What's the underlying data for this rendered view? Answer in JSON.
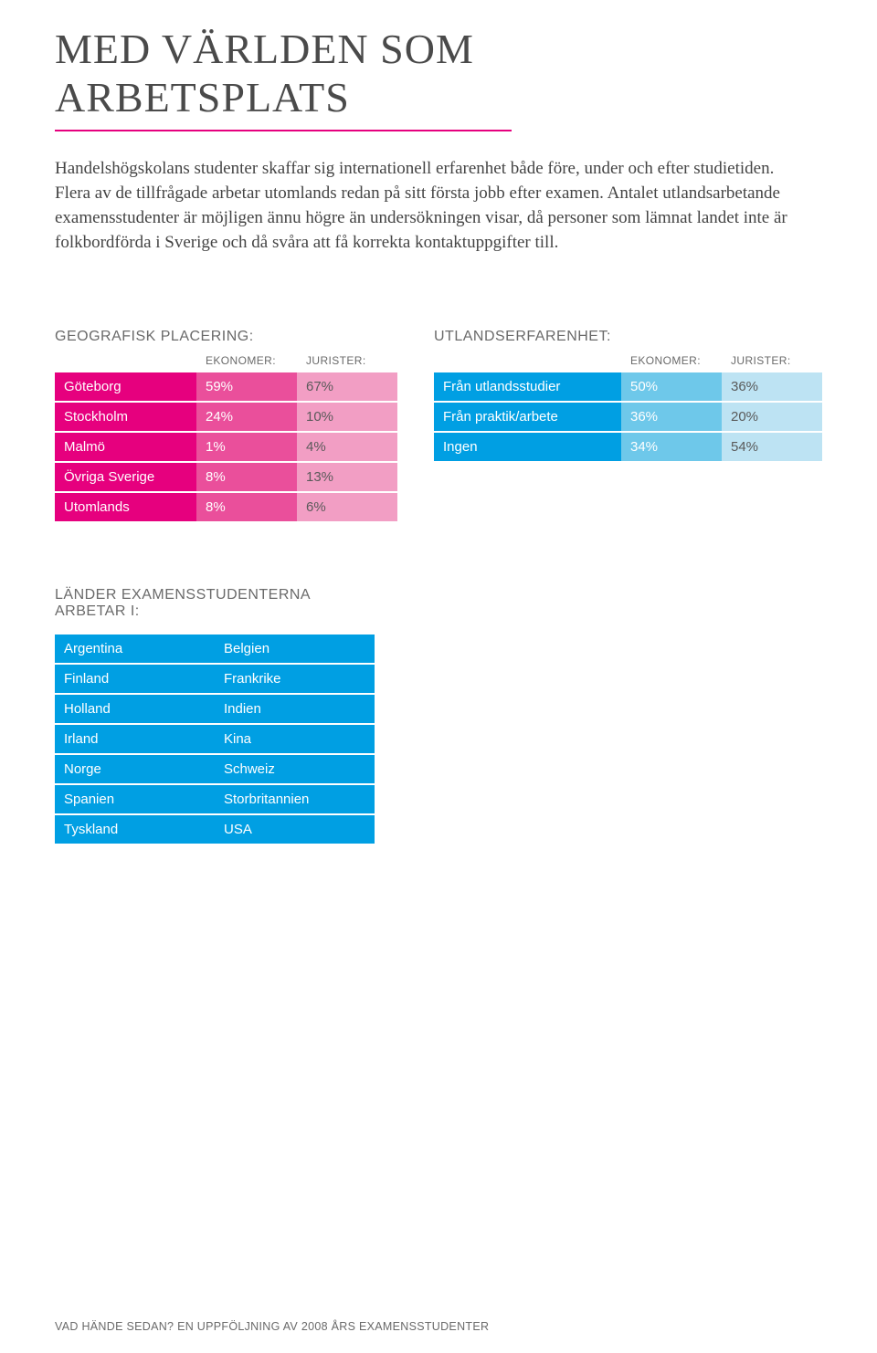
{
  "colors": {
    "rule": "#e6007e",
    "pink1": "#e6007e",
    "pink2": "#ea4f9b",
    "pink3": "#f29ec4",
    "blue1": "#009fe3",
    "blue2": "#6ec8ea",
    "blue3": "#bde3f3",
    "jur_text_light": "#ffffff",
    "jur_text_dark": "#5a5a5a",
    "text_gray": "#6a6a6a"
  },
  "title": {
    "line1": "Med världen som",
    "line2": "arbetsplats"
  },
  "paragraph": "Handelshögskolans studenter skaffar sig internationell erfarenhet både före, under och efter studietiden. Flera av de tillfrågade arbetar utomlands redan på sitt första jobb efter examen. Antalet utlandsarbetande examensstudenter är möjligen ännu högre än undersökningen visar, då personer som lämnat landet inte är folkbordförda i Sverige och då svåra att få korrekta kontaktuppgifter till.",
  "table1": {
    "heading": "Geografisk placering:",
    "col_ekon": "ekonomer:",
    "col_jur": "jurister:",
    "col_widths": {
      "label": 155,
      "ekon": 110,
      "jur": 110
    },
    "rows": [
      {
        "label": "Göteborg",
        "ekon": "59%",
        "jur": "67%",
        "shade": 1
      },
      {
        "label": "Stockholm",
        "ekon": "24%",
        "jur": "10%",
        "shade": 1
      },
      {
        "label": "Malmö",
        "ekon": "1%",
        "jur": "4%",
        "shade": 1
      },
      {
        "label": "Övriga Sverige",
        "ekon": "8%",
        "jur": "13%",
        "shade": 1
      },
      {
        "label": "Utomlands",
        "ekon": "8%",
        "jur": "6%",
        "shade": 1
      }
    ]
  },
  "table2": {
    "heading": "Utlandserfarenhet:",
    "col_ekon": "ekonomer:",
    "col_jur": "jurister:",
    "col_widths": {
      "label": 205,
      "ekon": 110,
      "jur": 110
    },
    "rows": [
      {
        "label": "Från utlandsstudier",
        "ekon": "50%",
        "jur": "36%"
      },
      {
        "label": "Från praktik/arbete",
        "ekon": "36%",
        "jur": "20%"
      },
      {
        "label": "Ingen",
        "ekon": "34%",
        "jur": "54%"
      }
    ]
  },
  "table3": {
    "heading_l1": "Länder  examensstudenterna",
    "heading_l2": "arbetar i:",
    "col_widths": {
      "c1": 175,
      "c2": 175
    },
    "rows": [
      [
        "Argentina",
        "Belgien"
      ],
      [
        "Finland",
        "Frankrike"
      ],
      [
        "Holland",
        "Indien"
      ],
      [
        "Irland",
        "Kina"
      ],
      [
        "Norge",
        "Schweiz"
      ],
      [
        "Spanien",
        "Storbritannien"
      ],
      [
        "Tyskland",
        "USA"
      ]
    ]
  },
  "footer": {
    "bold": "Vad hände sedan?",
    "rest": " En uppföljning av 2008 års examensstudenter"
  }
}
